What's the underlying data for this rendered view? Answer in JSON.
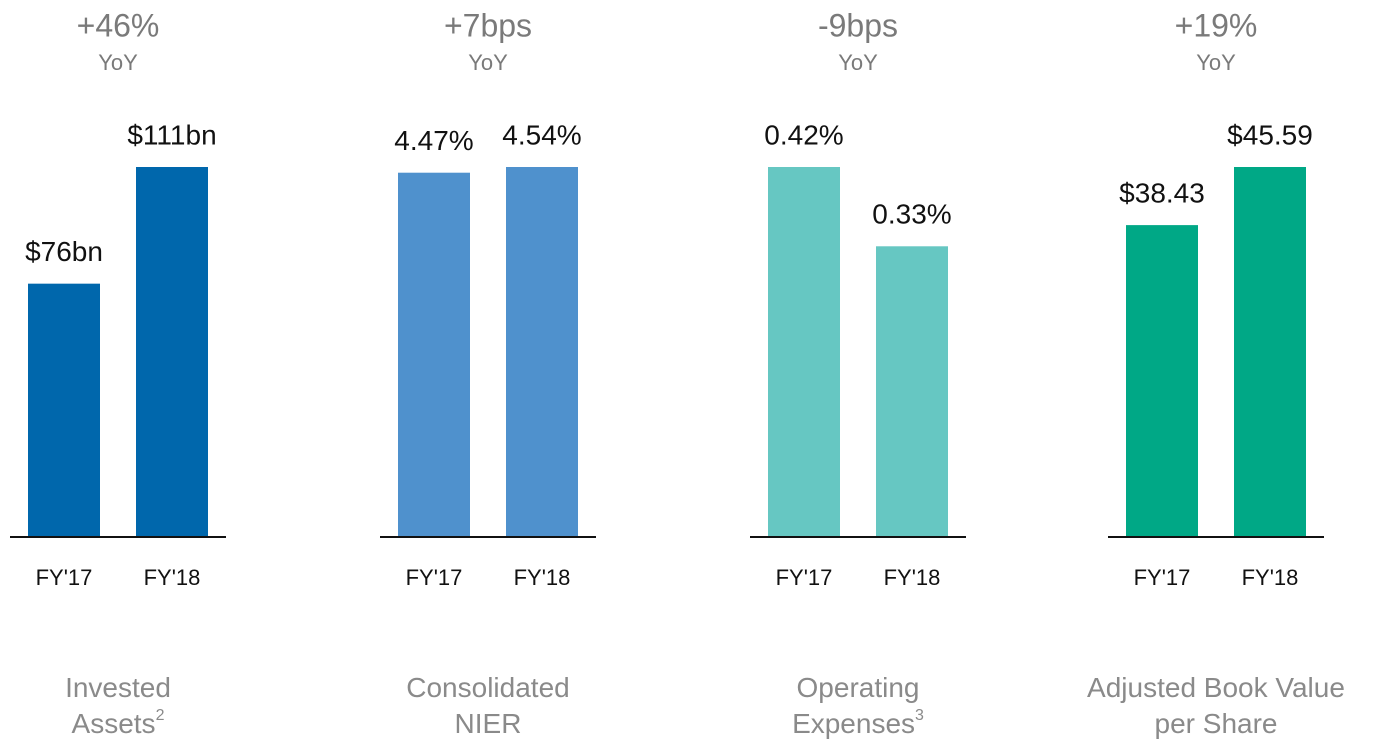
{
  "chart_data": [
    {
      "type": "bar",
      "title": "+46%",
      "subtitle": "YoY",
      "categories": [
        "FY'17",
        "FY'18"
      ],
      "values": [
        76,
        111
      ],
      "value_labels": [
        "$76bn",
        "$111bn"
      ],
      "color": "#0067ac",
      "caption": [
        "Invested",
        "Assets"
      ],
      "footnote": "2"
    },
    {
      "type": "bar",
      "title": "+7bps",
      "subtitle": "YoY",
      "categories": [
        "FY'17",
        "FY'18"
      ],
      "values": [
        4.47,
        4.54
      ],
      "value_labels": [
        "4.47%",
        "4.54%"
      ],
      "color": "#4f91cd",
      "caption": [
        "Consolidated",
        "NIER"
      ]
    },
    {
      "type": "bar",
      "title": "-9bps",
      "subtitle": "YoY",
      "categories": [
        "FY'17",
        "FY'18"
      ],
      "values": [
        0.42,
        0.33
      ],
      "value_labels": [
        "0.42%",
        "0.33%"
      ],
      "color": "#66c7c2",
      "caption": [
        "Operating",
        "Expenses"
      ],
      "footnote": "3"
    },
    {
      "type": "bar",
      "title": "+19%",
      "subtitle": "YoY",
      "categories": [
        "FY'17",
        "FY'18"
      ],
      "values": [
        38.43,
        45.59
      ],
      "value_labels": [
        "$38.43",
        "$45.59"
      ],
      "color": "#00a886",
      "caption": [
        "Adjusted Book Value",
        "per Share"
      ]
    }
  ]
}
